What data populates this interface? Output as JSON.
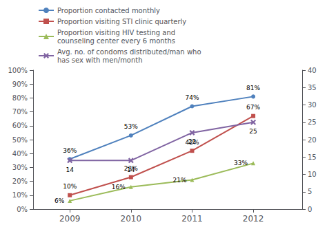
{
  "chart_data": {
    "type": "line",
    "x": [
      2009,
      2010,
      2011,
      2012
    ],
    "xlim": [
      2008.4,
      2012.8
    ],
    "xticks": [
      2009,
      2010,
      2011,
      2012
    ],
    "ylim": [
      0,
      1.0
    ],
    "yticks": [
      {
        "value": 0.0,
        "label": "0%"
      },
      {
        "value": 0.1,
        "label": "10%"
      },
      {
        "value": 0.2,
        "label": "20%"
      },
      {
        "value": 0.3,
        "label": "30%"
      },
      {
        "value": 0.4,
        "label": "40%"
      },
      {
        "value": 0.5,
        "label": "50%"
      },
      {
        "value": 0.6,
        "label": "60%"
      },
      {
        "value": 0.7,
        "label": "70%"
      },
      {
        "value": 0.8,
        "label": "80%"
      },
      {
        "value": 0.9,
        "label": "90%"
      },
      {
        "value": 1.0,
        "label": "100%"
      }
    ],
    "y2lim": [
      0,
      40
    ],
    "y2ticks": [
      0,
      5,
      10,
      15,
      20,
      25,
      30,
      35,
      40
    ],
    "grid": false,
    "legend": "upper left",
    "data_labels": true,
    "series": [
      {
        "name": "Proportion contacted monthly",
        "color": "#4F81BD",
        "marker": "circle",
        "values": [
          0.36,
          0.53,
          0.74,
          0.81
        ],
        "value_labels": [
          "36%",
          "53%",
          "74%",
          "81%"
        ]
      },
      {
        "name": "Proportion visiting STI clinic quarterly",
        "color": "#C0504D",
        "marker": "square",
        "values": [
          0.1,
          0.23,
          0.42,
          0.67
        ],
        "value_labels": [
          "10%",
          "23%",
          "42%",
          "67%"
        ]
      },
      {
        "name": "Proportion visiting HIV testing and\ncounseling center every 6 months",
        "color": "#9BBB59",
        "marker": "triangle",
        "values": [
          0.06,
          0.16,
          0.21,
          0.33
        ],
        "value_labels": [
          "6%",
          "16%",
          "21%",
          "33%"
        ]
      },
      {
        "name": "Avg. no. of condoms distributed/man who\nhas sex with men/month",
        "color": "#8064A2",
        "marker": "x",
        "axis": "y2",
        "values": [
          14,
          14,
          22,
          25
        ],
        "value_labels": [
          "14",
          "14",
          "22",
          "25"
        ]
      }
    ]
  }
}
